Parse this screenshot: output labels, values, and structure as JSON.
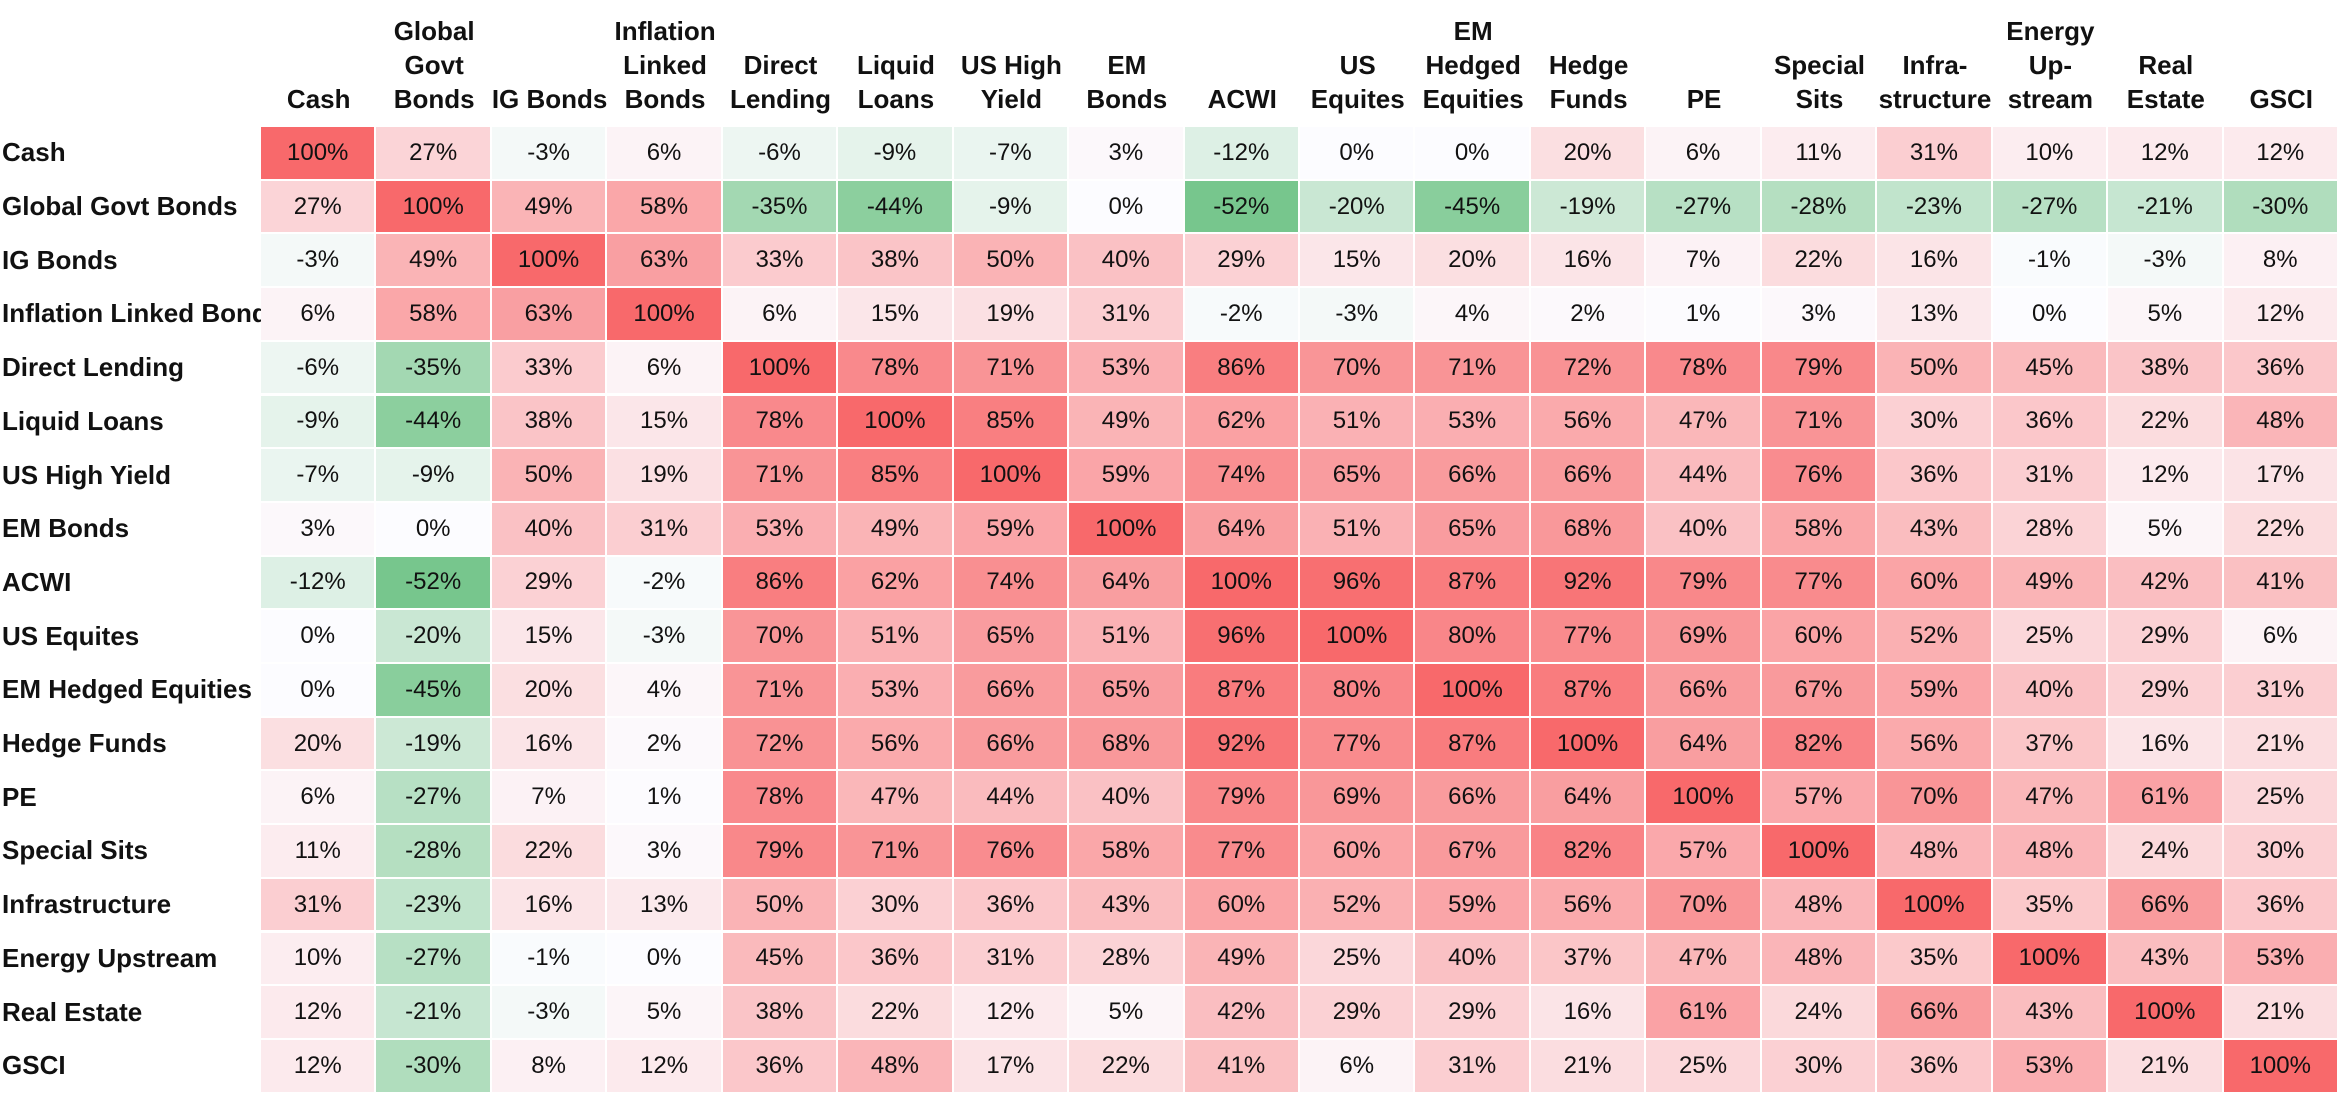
{
  "chart_data": {
    "type": "heatmap",
    "columns": [
      [
        "Cash"
      ],
      [
        "Global",
        "Govt",
        "Bonds"
      ],
      [
        "IG Bonds"
      ],
      [
        "Inflation",
        "Linked",
        "Bonds"
      ],
      [
        "Direct",
        "Lending"
      ],
      [
        "Liquid",
        "Loans"
      ],
      [
        "US High",
        "Yield"
      ],
      [
        "EM",
        "Bonds"
      ],
      [
        "ACWI"
      ],
      [
        "US",
        "Equites"
      ],
      [
        "EM",
        "Hedged",
        "Equities"
      ],
      [
        "Hedge",
        "Funds"
      ],
      [
        "PE"
      ],
      [
        "Special",
        "Sits"
      ],
      [
        "Infra-",
        "structure"
      ],
      [
        "Energy",
        "Up-",
        "stream"
      ],
      [
        "Real",
        "Estate"
      ],
      [
        "GSCI"
      ]
    ],
    "rows": [
      "Cash",
      "Global Govt Bonds",
      "IG Bonds",
      "Inflation Linked Bonds",
      "Direct Lending",
      "Liquid Loans",
      "US High Yield",
      "EM Bonds",
      "ACWI",
      "US Equites",
      "EM Hedged Equities",
      "Hedge Funds",
      "PE",
      "Special Sits",
      "Infrastructure",
      "Energy Upstream",
      "Real Estate",
      "GSCI"
    ],
    "values": [
      [
        100,
        27,
        -3,
        6,
        -6,
        -9,
        -7,
        3,
        -12,
        0,
        0,
        20,
        6,
        11,
        31,
        10,
        12,
        12
      ],
      [
        27,
        100,
        49,
        58,
        -35,
        -44,
        -9,
        0,
        -52,
        -20,
        -45,
        -19,
        -27,
        -28,
        -23,
        -27,
        -21,
        -30
      ],
      [
        -3,
        49,
        100,
        63,
        33,
        38,
        50,
        40,
        29,
        15,
        20,
        16,
        7,
        22,
        16,
        -1,
        -3,
        8
      ],
      [
        6,
        58,
        63,
        100,
        6,
        15,
        19,
        31,
        -2,
        -3,
        4,
        2,
        1,
        3,
        13,
        0,
        5,
        12
      ],
      [
        -6,
        -35,
        33,
        6,
        100,
        78,
        71,
        53,
        86,
        70,
        71,
        72,
        78,
        79,
        50,
        45,
        38,
        36
      ],
      [
        -9,
        -44,
        38,
        15,
        78,
        100,
        85,
        49,
        62,
        51,
        53,
        56,
        47,
        71,
        30,
        36,
        22,
        48
      ],
      [
        -7,
        -9,
        50,
        19,
        71,
        85,
        100,
        59,
        74,
        65,
        66,
        66,
        44,
        76,
        36,
        31,
        12,
        17
      ],
      [
        3,
        0,
        40,
        31,
        53,
        49,
        59,
        100,
        64,
        51,
        65,
        68,
        40,
        58,
        43,
        28,
        5,
        22
      ],
      [
        -12,
        -52,
        29,
        -2,
        86,
        62,
        74,
        64,
        100,
        96,
        87,
        92,
        79,
        77,
        60,
        49,
        42,
        41
      ],
      [
        0,
        -20,
        15,
        -3,
        70,
        51,
        65,
        51,
        96,
        100,
        80,
        77,
        69,
        60,
        52,
        25,
        29,
        6
      ],
      [
        0,
        -45,
        20,
        4,
        71,
        53,
        66,
        65,
        87,
        80,
        100,
        87,
        66,
        67,
        59,
        40,
        29,
        31
      ],
      [
        20,
        -19,
        16,
        2,
        72,
        56,
        66,
        68,
        92,
        77,
        87,
        100,
        64,
        82,
        56,
        37,
        16,
        21
      ],
      [
        6,
        -27,
        7,
        1,
        78,
        47,
        44,
        40,
        79,
        69,
        66,
        64,
        100,
        57,
        70,
        47,
        61,
        25
      ],
      [
        11,
        -28,
        22,
        3,
        79,
        71,
        76,
        58,
        77,
        60,
        67,
        82,
        57,
        100,
        48,
        48,
        24,
        30
      ],
      [
        31,
        -23,
        16,
        13,
        50,
        30,
        36,
        43,
        60,
        52,
        59,
        56,
        70,
        48,
        100,
        35,
        66,
        36
      ],
      [
        10,
        -27,
        -1,
        0,
        45,
        36,
        31,
        28,
        49,
        25,
        40,
        37,
        47,
        48,
        35,
        100,
        43,
        53
      ],
      [
        12,
        -21,
        -3,
        5,
        38,
        22,
        12,
        5,
        42,
        29,
        29,
        16,
        61,
        24,
        66,
        43,
        100,
        21
      ],
      [
        12,
        -30,
        8,
        12,
        36,
        48,
        17,
        22,
        41,
        6,
        31,
        21,
        25,
        30,
        36,
        53,
        21,
        100
      ]
    ],
    "value_suffix": "%",
    "colors": {
      "positive": "#f8696b",
      "neutral": "#fcfcff",
      "negative": "#63be7b"
    }
  }
}
